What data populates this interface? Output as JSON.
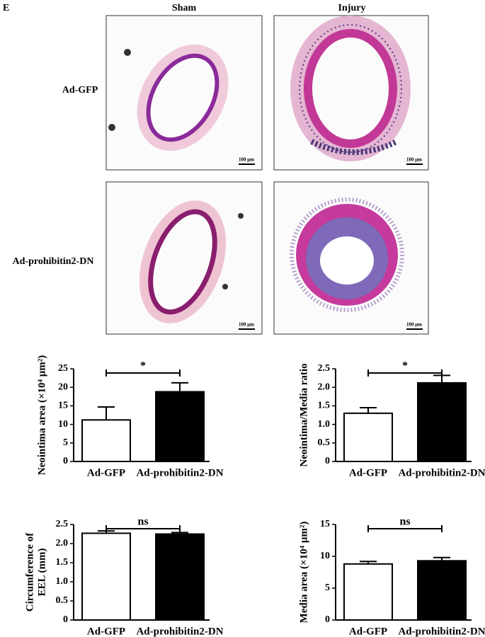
{
  "panel_label": "E",
  "columns": [
    "Sham",
    "Injury"
  ],
  "rows": [
    "Ad-GFP",
    "Ad-prohibitin2-DN"
  ],
  "scale_bar": "100 μm",
  "chart_data": [
    {
      "type": "bar",
      "ylabel": "Neointima area (×10⁴ μm²)",
      "categories": [
        "Ad-GFP",
        "Ad-prohibitin2-DN"
      ],
      "values": [
        11.2,
        18.8
      ],
      "errors": [
        3.5,
        2.4
      ],
      "colors": [
        "#ffffff",
        "#000000"
      ],
      "ylim": [
        0,
        25
      ],
      "yticks": [
        0,
        5,
        10,
        15,
        20,
        25
      ],
      "annotation": "*"
    },
    {
      "type": "bar",
      "ylabel": "Neointima/Media ratio",
      "categories": [
        "Ad-GFP",
        "Ad-prohibitin2-DN"
      ],
      "values": [
        1.3,
        2.12
      ],
      "errors": [
        0.15,
        0.2
      ],
      "colors": [
        "#ffffff",
        "#000000"
      ],
      "ylim": [
        0,
        2.5
      ],
      "yticks": [
        0,
        0.5,
        {
          "value": 1,
          "label": "1.0"
        },
        1.5,
        {
          "value": 2,
          "label": "2.0"
        },
        2.5
      ],
      "annotation": "*"
    },
    {
      "type": "bar",
      "ylabel": [
        "Circumference of",
        "EEL (mm)"
      ],
      "categories": [
        "Ad-GFP",
        "Ad-prohibitin2-DN"
      ],
      "values": [
        2.27,
        2.25
      ],
      "errors": [
        0.06,
        0.04
      ],
      "colors": [
        "#ffffff",
        "#000000"
      ],
      "ylim": [
        0,
        2.5
      ],
      "yticks": [
        0,
        0.5,
        {
          "value": 1,
          "label": "1.0"
        },
        1.5,
        {
          "value": 2,
          "label": "2.0"
        },
        2.5
      ],
      "annotation": "ns"
    },
    {
      "type": "bar",
      "ylabel": "Media area (×10⁴ μm²)",
      "categories": [
        "Ad-GFP",
        "Ad-prohibitin2-DN"
      ],
      "values": [
        8.8,
        9.3
      ],
      "errors": [
        0.4,
        0.5
      ],
      "colors": [
        "#ffffff",
        "#000000"
      ],
      "ylim": [
        0,
        15
      ],
      "yticks": [
        0,
        5,
        10,
        15
      ],
      "annotation": "ns"
    }
  ]
}
